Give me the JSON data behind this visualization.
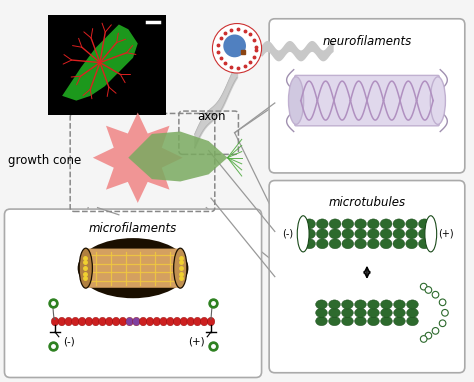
{
  "bg_color": "#f5f5f5",
  "labels": {
    "growth_cone": "growth cone",
    "axon": "axon",
    "neurofilaments": "neurofilaments",
    "microtubules": "microtubules",
    "microfilaments": "microfilaments"
  },
  "colors": {
    "growth_cone_pink": "#f08888",
    "growth_cone_green": "#7aaa60",
    "axon_gray": "#c8c8c8",
    "neuro_fill": "#dcd0e8",
    "neuro_border": "#b0a0c0",
    "neuro_coil": "#b090c0",
    "neuro_squig": "#a090b0",
    "mt_green": "#2d6a2d",
    "mt_green_dark": "#1a4a1a",
    "mf_orange": "#d4a060",
    "mf_dark": "#1a0f00",
    "mf_red": "#cc2020",
    "mf_purple": "#8040a0",
    "line_color": "#999999",
    "eye_blue": "#5080c0",
    "eye_red": "#cc3030",
    "label_color": "#000000",
    "green_dot": "#2d8020",
    "box_border": "#aaaaaa",
    "dashed_border": "#888888"
  },
  "figsize": [
    4.74,
    3.82
  ],
  "dpi": 100
}
